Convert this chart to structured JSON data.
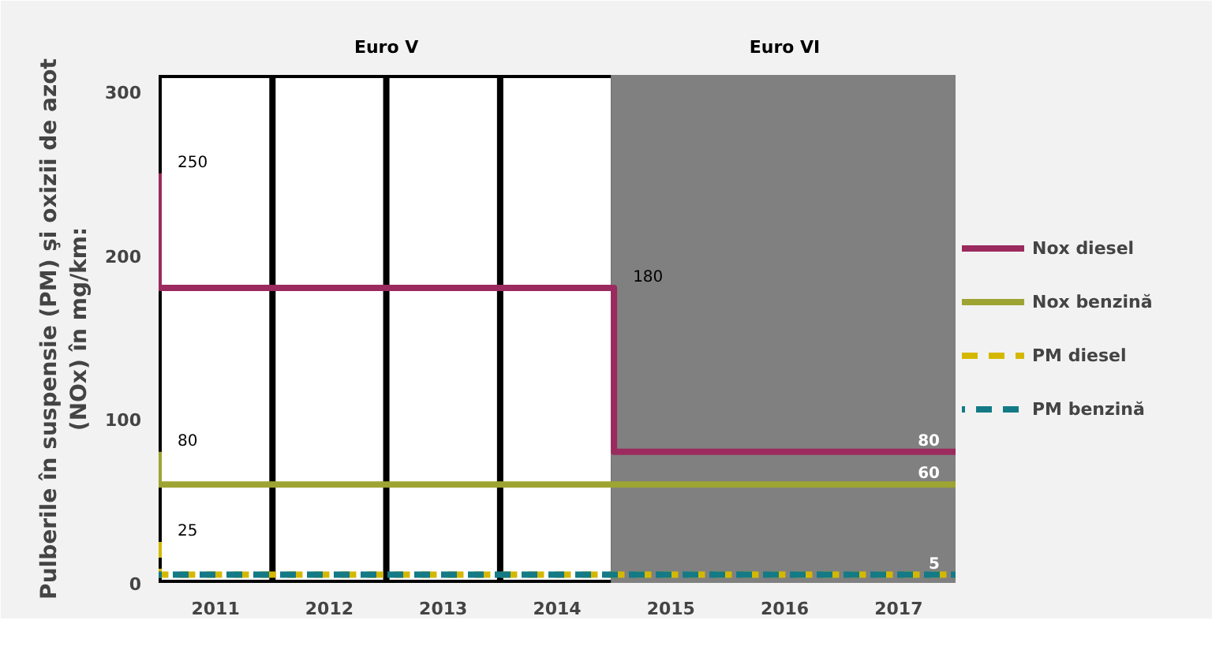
{
  "chart_data": {
    "type": "line",
    "ylabel": "Pulberile în suspensie (PM) şi oxizii de azot\n(NOx) în mg/km:",
    "xlim": [
      2010.5,
      2017.5
    ],
    "xticks": [
      2011,
      2012,
      2013,
      2014,
      2015,
      2016,
      2017
    ],
    "ylim": [
      0,
      310
    ],
    "yticks": [
      0,
      100,
      200,
      300
    ],
    "series": [
      {
        "name": "Nox diesel",
        "color": "#9b2a5e",
        "x": [
          2010.5,
          2010.5,
          2014.5,
          2014.5,
          2017.5
        ],
        "values": [
          250,
          180,
          180,
          80,
          80
        ]
      },
      {
        "name": "Nox benzină",
        "color": "#9ea432",
        "x": [
          2010.5,
          2010.5,
          2017.5
        ],
        "values": [
          80,
          60,
          60
        ]
      },
      {
        "name": "PM diesel",
        "color": "#d4b800",
        "line_style": "dashed",
        "x": [
          2010.5,
          2010.5,
          2017.5
        ],
        "values": [
          25,
          5,
          5
        ]
      },
      {
        "name": "PM benzină",
        "color": "#137a86",
        "line_style": "dashed",
        "x": [
          2010.5,
          2017.5
        ],
        "values": [
          5,
          5
        ]
      }
    ],
    "bands": [
      {
        "axis": "x",
        "from": 2010.5,
        "to": 2014.5,
        "label": "Euro V",
        "color": "#ffffff"
      },
      {
        "axis": "x",
        "from": 2014.5,
        "to": 2017.5,
        "label": "Euro VI",
        "color": "#808080"
      }
    ],
    "annotations": [
      {
        "text": "250",
        "x": 2010.5,
        "y": 250
      },
      {
        "text": "180",
        "x": 2014.5,
        "y": 180
      },
      {
        "text": "80",
        "x": 2010.5,
        "y": 80
      },
      {
        "text": "25",
        "x": 2010.5,
        "y": 25
      },
      {
        "text": "80",
        "x": 2017.5,
        "y": 80
      },
      {
        "text": "60",
        "x": 2017.5,
        "y": 60
      },
      {
        "text": "5",
        "x": 2017.5,
        "y": 5
      }
    ],
    "legend": "right",
    "marker": "none",
    "line_style": "solid"
  }
}
